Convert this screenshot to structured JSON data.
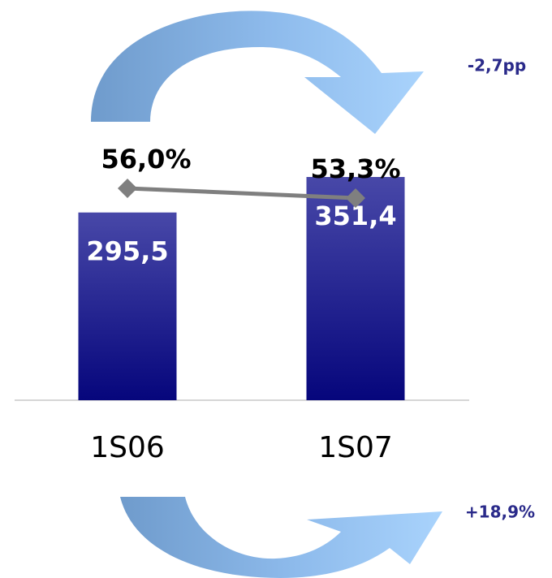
{
  "chart_data": {
    "type": "bar",
    "categories": [
      "1S06",
      "1S07"
    ],
    "series": [
      {
        "type": "bar",
        "values": [
          295.5,
          351.4
        ],
        "value_labels": [
          "295,5",
          "351,4"
        ],
        "color": "#2a2a95"
      },
      {
        "type": "line",
        "axis": "y2",
        "values": [
          56.0,
          53.3
        ],
        "value_labels": [
          "56,0%",
          "53,3%"
        ],
        "color": "#7f7f7f"
      }
    ],
    "annotations": [
      "-2,7pp",
      "+18,9%"
    ]
  }
}
